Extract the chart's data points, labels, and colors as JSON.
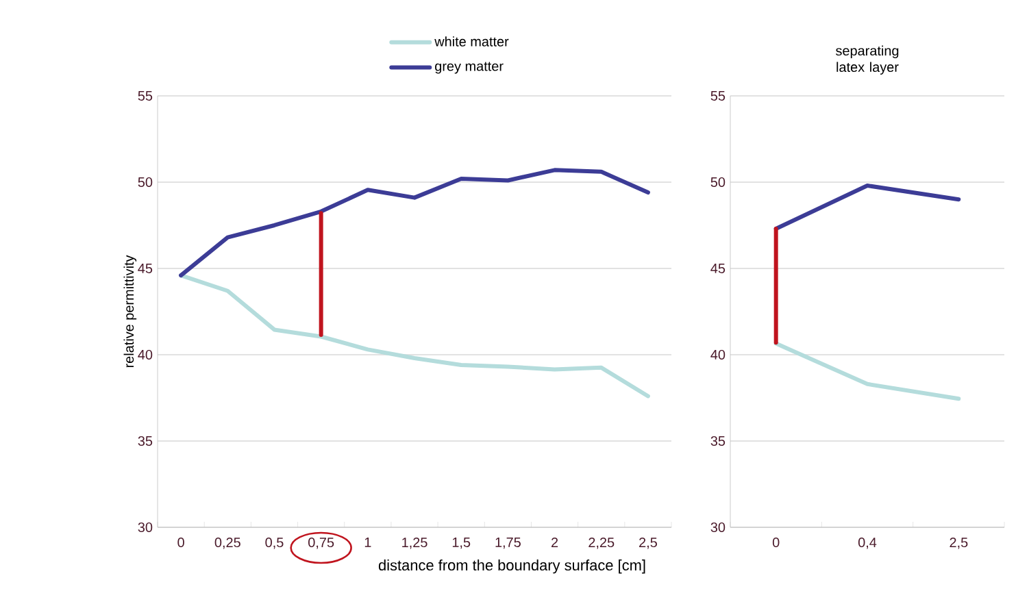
{
  "chart_data": [
    {
      "type": "line",
      "ylabel": "relative permittivity",
      "xlabel": "distance from the boundary surface [cm]",
      "categories": [
        "0",
        "0,25",
        "0,5",
        "0,75",
        "1",
        "1,25",
        "1,5",
        "1,75",
        "2",
        "2,25",
        "2,5"
      ],
      "series": [
        {
          "name": "white matter",
          "color": "#b4dcdc",
          "values": [
            44.6,
            43.7,
            41.45,
            41.05,
            40.3,
            39.8,
            39.4,
            39.3,
            39.15,
            39.25,
            37.6
          ]
        },
        {
          "name": "grey matter",
          "color": "#3c3c96",
          "values": [
            44.6,
            46.8,
            47.5,
            48.3,
            49.55,
            49.1,
            50.2,
            50.1,
            50.7,
            50.6,
            49.4
          ]
        },
        {
          "color": "#c0141e",
          "x": [
            "0,75",
            "0,75"
          ],
          "values": [
            41.15,
            48.2
          ]
        }
      ],
      "ylim": [
        30,
        55
      ],
      "yticks": [
        30,
        35,
        40,
        45,
        50,
        55
      ],
      "grid": "y",
      "legend": "top",
      "line_style": "solid"
    },
    {
      "type": "line",
      "title": "separating latex layer",
      "categories": [
        "0",
        "0,4",
        "2,5"
      ],
      "series": [
        {
          "color": "#b4dcdc",
          "values": [
            40.65,
            38.3,
            37.45
          ]
        },
        {
          "color": "#3c3c96",
          "values": [
            47.3,
            49.8,
            49.0
          ]
        },
        {
          "color": "#c0141e",
          "x": [
            "0",
            "0"
          ],
          "values": [
            40.7,
            47.3
          ]
        }
      ],
      "ylim": [
        30,
        55
      ],
      "yticks": [
        30,
        35,
        40,
        45,
        50,
        55
      ],
      "grid": "y",
      "line_style": "solid"
    }
  ]
}
